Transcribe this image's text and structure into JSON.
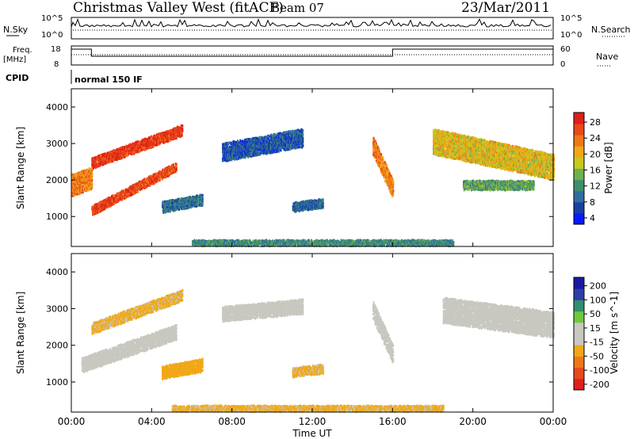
{
  "header": {
    "station": "Christmas Valley West (fitACF)",
    "beam": "Beam 07",
    "date": "23/Mar/2011"
  },
  "top_panels": {
    "nsky_label": "N.Sky",
    "nsky_ticks": [
      "10^5",
      "10^0"
    ],
    "nsearch_label": "N.Search",
    "nsearch_ticks": [
      "10^5",
      "10^0"
    ],
    "freq_label_1": "Freq.",
    "freq_label_2": "[MHz]",
    "freq_ticks": [
      "18",
      "8"
    ],
    "nave_label": "Nave",
    "nave_ticks": [
      "60",
      "0"
    ],
    "cpid_label": "CPID",
    "cpid_value": "normal 150 IF"
  },
  "colors": {
    "power_scale": [
      "#0a1aff",
      "#1a3fa8",
      "#2f6fa0",
      "#3f8f6f",
      "#6fb04f",
      "#c8c81e",
      "#f0a818",
      "#f07818",
      "#e84a1a",
      "#e0201a"
    ],
    "velocity_scale": [
      "#e0201a",
      "#e84a1a",
      "#f07818",
      "#f0a818",
      "#c8c8c0",
      "#c8c8c0",
      "#6fc83f",
      "#2f8f6f",
      "#2f3fa8",
      "#1a1aa0"
    ]
  },
  "chart_data": [
    {
      "type": "heatmap",
      "title": "",
      "xlabel": "Time UT",
      "ylabel": "Slant Range [km]",
      "xlim": [
        "00:00",
        "24:00"
      ],
      "ylim": [
        180,
        4500
      ],
      "x_ticks": [
        "00:00",
        "04:00",
        "08:00",
        "12:00",
        "16:00",
        "20:00",
        "00:00"
      ],
      "y_ticks": [
        "1000",
        "2000",
        "3000",
        "4000"
      ],
      "colorbar_label": "Power [dB]",
      "colorbar_ticks": [
        "28",
        "24",
        "20",
        "16",
        "12",
        "8",
        "4"
      ],
      "colorbar_range": [
        0,
        30
      ],
      "features": [
        {
          "name": "arc-upper",
          "t_start": 1.0,
          "t_end": 5.5,
          "range_start": 2500,
          "range_end": 3400,
          "width_km": 300,
          "power_db": 27
        },
        {
          "name": "arc-lower",
          "t_start": 1.0,
          "t_end": 5.2,
          "range_start": 1200,
          "range_end": 2400,
          "width_km": 250,
          "power_db": 26
        },
        {
          "name": "band-2000",
          "t_start": 0.0,
          "t_end": 1.0,
          "range_start": 1900,
          "range_end": 2100,
          "width_km": 600,
          "power_db": 22
        },
        {
          "name": "patch-1400",
          "t_start": 4.5,
          "t_end": 6.5,
          "range_start": 1300,
          "range_end": 1500,
          "width_km": 300,
          "power_db": 8
        },
        {
          "name": "patch-3000",
          "t_start": 7.5,
          "t_end": 11.5,
          "range_start": 2800,
          "range_end": 3200,
          "width_km": 500,
          "power_db": 6
        },
        {
          "name": "patch-1300",
          "t_start": 11.0,
          "t_end": 12.5,
          "range_start": 1300,
          "range_end": 1400,
          "width_km": 250,
          "power_db": 7
        },
        {
          "name": "streak-16",
          "t_start": 15.0,
          "t_end": 16.0,
          "range_start": 3000,
          "range_end": 1800,
          "width_km": 500,
          "power_db": 22
        },
        {
          "name": "arc-evening",
          "t_start": 18.0,
          "t_end": 24.0,
          "range_start": 3100,
          "range_end": 2400,
          "width_km": 700,
          "power_db": 18
        },
        {
          "name": "band-evening-low",
          "t_start": 19.5,
          "t_end": 23.0,
          "range_start": 1900,
          "range_end": 1900,
          "width_km": 250,
          "power_db": 12
        },
        {
          "name": "ground-scatter",
          "t_start": 6.0,
          "t_end": 19.0,
          "range_start": 300,
          "range_end": 300,
          "width_km": 200,
          "power_db": 10
        }
      ]
    },
    {
      "type": "heatmap",
      "title": "",
      "xlabel": "Time UT",
      "ylabel": "Slant Range [km]",
      "xlim": [
        "00:00",
        "24:00"
      ],
      "ylim": [
        180,
        4500
      ],
      "x_ticks": [
        "00:00",
        "04:00",
        "08:00",
        "12:00",
        "16:00",
        "20:00",
        "00:00"
      ],
      "y_ticks": [
        "1000",
        "2000",
        "3000",
        "4000"
      ],
      "colorbar_label": "Velocity [m s^-1]",
      "colorbar_ticks": [
        "200",
        "100",
        "50",
        "15",
        "-15",
        "-50",
        "-100",
        "-200"
      ],
      "colorbar_range": [
        -250,
        250
      ],
      "features": [
        {
          "name": "v-arc-upper",
          "t_start": 1.0,
          "t_end": 5.5,
          "range_start": 2500,
          "range_end": 3400,
          "width_km": 300,
          "velocity": -60
        },
        {
          "name": "v-arc-lower",
          "t_start": 0.5,
          "t_end": 5.2,
          "range_start": 1500,
          "range_end": 2400,
          "width_km": 400,
          "velocity": 0
        },
        {
          "name": "v-patch-1400",
          "t_start": 4.5,
          "t_end": 6.5,
          "range_start": 1300,
          "range_end": 1500,
          "width_km": 350,
          "velocity": -80
        },
        {
          "name": "v-patch-3000",
          "t_start": 7.5,
          "t_end": 11.5,
          "range_start": 2900,
          "range_end": 3100,
          "width_km": 400,
          "velocity": -30
        },
        {
          "name": "v-patch-1300",
          "t_start": 11.0,
          "t_end": 12.5,
          "range_start": 1300,
          "range_end": 1400,
          "width_km": 250,
          "velocity": -60
        },
        {
          "name": "v-streak-16",
          "t_start": 15.0,
          "t_end": 16.0,
          "range_start": 3000,
          "range_end": 1800,
          "width_km": 500,
          "velocity": 0
        },
        {
          "name": "v-arc-evening",
          "t_start": 18.5,
          "t_end": 24.0,
          "range_start": 3000,
          "range_end": 2600,
          "width_km": 700,
          "velocity": 0
        },
        {
          "name": "v-ground",
          "t_start": 5.0,
          "t_end": 18.5,
          "range_start": 300,
          "range_end": 300,
          "width_km": 200,
          "velocity": -60
        }
      ]
    }
  ]
}
